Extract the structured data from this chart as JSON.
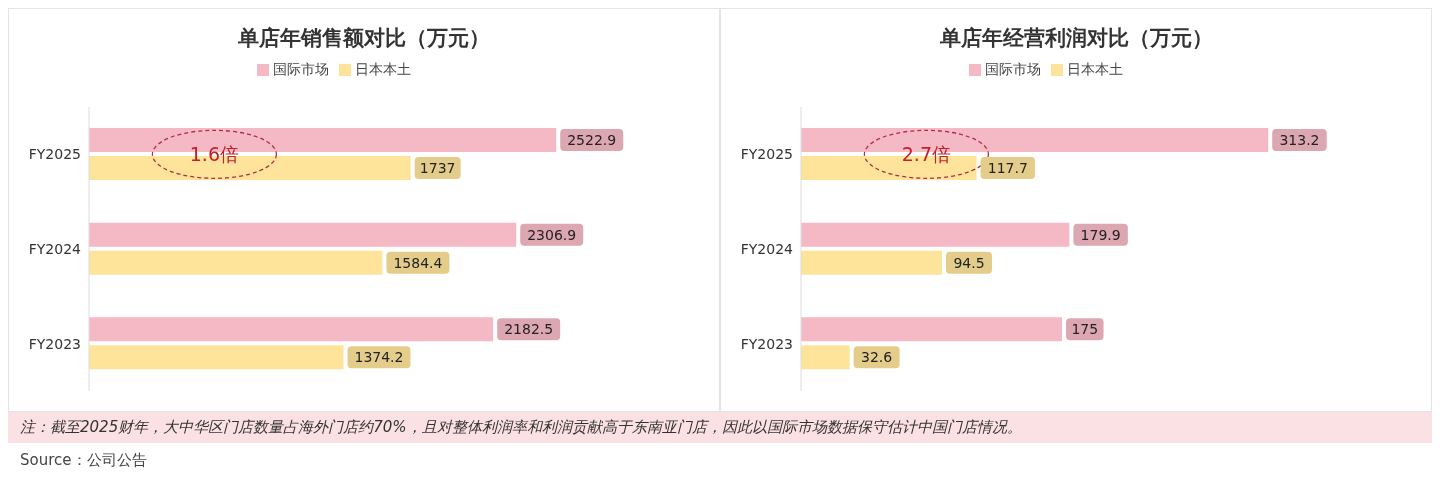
{
  "chart_data": [
    {
      "type": "bar",
      "orientation": "horizontal",
      "title": "单店年销售额对比（万元）",
      "categories": [
        "FY2025",
        "FY2024",
        "FY2023"
      ],
      "series": [
        {
          "name": "国际市场",
          "color": "#f5b9c5",
          "values": [
            2522.9,
            2306.9,
            2182.5
          ]
        },
        {
          "name": "日本本土",
          "color": "#fde49a",
          "values": [
            1737,
            1584.4,
            1374.2
          ]
        }
      ],
      "data_labels": true,
      "legend": "top",
      "grid": false,
      "tick_labels": "y",
      "annotations": [
        {
          "text": "1.6倍",
          "y": "FY2025"
        },
        "注：截至2025财年，大中华区门店数量占海外门店约70%，且对整体利润率和利润贡献高于东南亚门店，因此以国际市场数据保守估计中国门店情况。",
        "Source：公司公告"
      ]
    },
    {
      "type": "bar",
      "orientation": "horizontal",
      "title": "单店年经营利润对比（万元）",
      "categories": [
        "FY2025",
        "FY2024",
        "FY2023"
      ],
      "series": [
        {
          "name": "国际市场",
          "color": "#f5b9c5",
          "values": [
            313.2,
            179.9,
            175
          ]
        },
        {
          "name": "日本本土",
          "color": "#fde49a",
          "values": [
            117.7,
            94.5,
            32.6
          ]
        }
      ],
      "data_labels": true,
      "legend": "top",
      "grid": false,
      "tick_labels": "y",
      "annotations": [
        {
          "text": "2.7倍",
          "y": "FY2025"
        }
      ]
    }
  ]
}
